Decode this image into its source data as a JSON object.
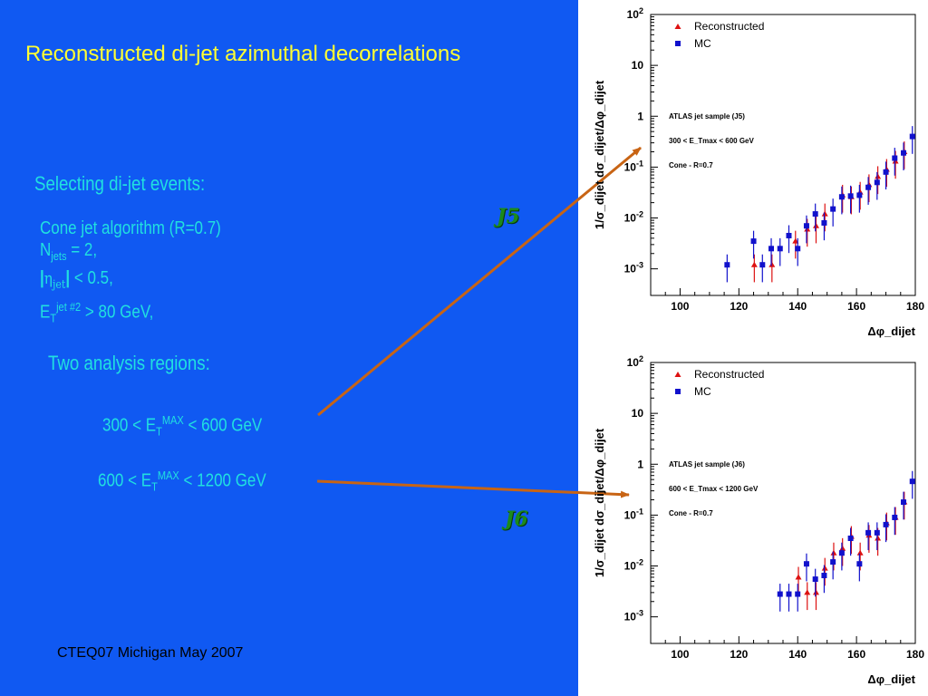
{
  "slide": {
    "title": "Reconstructed di-jet azimuthal decorrelations",
    "selecting": "Selecting di-jet events:",
    "algo": "Cone jet algorithm (R=0.7)",
    "njets_n": "N",
    "njets_sub": "jets",
    "njets_rest": " = 2,",
    "eta_open": "|",
    "eta_sym": "η",
    "eta_sub": "jet",
    "eta_close": "|",
    "eta_rest": "  < 0.5,",
    "et_e": "E",
    "et_sub": "T",
    "et_sup": "jet #2",
    "et_rest": " > 80 GeV,",
    "two_regions": "Two analysis regions:",
    "r1_pre": "300 < E",
    "r1_sub": "T",
    "r1_sup": "MAX",
    "r1_post": " < 600 GeV",
    "r2_pre": "600 < E",
    "r2_sub": "T",
    "r2_sup": "MAX",
    "r2_post": " < 1200 GeV",
    "j5": "J5",
    "j6": "J6",
    "footer": "CTEQ07 Michigan May 2007"
  },
  "colors": {
    "background": "#1059f2",
    "title": "#ffff33",
    "cyan_text": "#20e0e0",
    "arrow": "#c86414",
    "jet_label": "#1c8a1c",
    "reconstructed": "#dd1111",
    "mc": "#1111cc"
  },
  "chart_data": [
    {
      "type": "scatter",
      "xlabel": "Δφ_dijet",
      "ylabel": "1/σ_dijet dσ_dijet/Δφ_dijet",
      "xlim": [
        90,
        180
      ],
      "ylim": [
        0.0003,
        100
      ],
      "y_scale": "log",
      "x_ticks": [
        100,
        120,
        140,
        160,
        180
      ],
      "y_tick_labels": [
        "10^-3",
        "10^-2",
        "10^-1",
        "1",
        "10",
        "10^2"
      ],
      "legend": [
        "Reconstructed",
        "MC"
      ],
      "legend_position": "top-left",
      "annotations": [
        "ATLAS jet sample (J5)",
        "300 < E_Tmax < 600 GeV",
        "Cone - R=0.7"
      ],
      "series": [
        {
          "name": "Reconstructed",
          "marker": "triangle",
          "x": [
            125,
            131,
            139,
            143,
            146,
            149,
            155,
            158,
            161,
            164,
            167,
            170,
            173,
            176
          ],
          "y": [
            0.0012,
            0.0012,
            0.0035,
            0.006,
            0.007,
            0.012,
            0.028,
            0.026,
            0.032,
            0.045,
            0.065,
            0.09,
            0.13,
            0.2
          ]
        },
        {
          "name": "MC",
          "marker": "square",
          "x": [
            116,
            125,
            128,
            131,
            134,
            137,
            140,
            143,
            146,
            149,
            152,
            155,
            158,
            161,
            164,
            167,
            170,
            173,
            176,
            179
          ],
          "y": [
            0.0012,
            0.0035,
            0.0012,
            0.0025,
            0.0025,
            0.0045,
            0.0025,
            0.007,
            0.012,
            0.008,
            0.015,
            0.026,
            0.027,
            0.028,
            0.04,
            0.05,
            0.08,
            0.15,
            0.19,
            0.4
          ]
        }
      ]
    },
    {
      "type": "scatter",
      "xlabel": "Δφ_dijet",
      "ylabel": "1/σ_dijet dσ_dijet/Δφ_dijet",
      "xlim": [
        90,
        180
      ],
      "ylim": [
        0.0003,
        100
      ],
      "y_scale": "log",
      "x_ticks": [
        100,
        120,
        140,
        160,
        180
      ],
      "y_tick_labels": [
        "10^-3",
        "10^-2",
        "10^-1",
        "1",
        "10",
        "10^2"
      ],
      "legend": [
        "Reconstructed",
        "MC"
      ],
      "legend_position": "top-left",
      "annotations": [
        "ATLAS jet sample (J6)",
        "600 < E_Tmax < 1200 GeV",
        "Cone - R=0.7"
      ],
      "series": [
        {
          "name": "Reconstructed",
          "marker": "triangle",
          "x": [
            140,
            143,
            146,
            149,
            152,
            155,
            158,
            161,
            164,
            167,
            170,
            173,
            176
          ],
          "y": [
            0.006,
            0.003,
            0.003,
            0.009,
            0.018,
            0.022,
            0.038,
            0.018,
            0.04,
            0.035,
            0.07,
            0.09,
            0.18
          ]
        },
        {
          "name": "MC",
          "marker": "square",
          "x": [
            134,
            137,
            140,
            143,
            146,
            149,
            152,
            155,
            158,
            161,
            164,
            167,
            170,
            173,
            176,
            179
          ],
          "y": [
            0.0028,
            0.0028,
            0.0028,
            0.011,
            0.0055,
            0.0065,
            0.012,
            0.018,
            0.035,
            0.011,
            0.045,
            0.045,
            0.065,
            0.09,
            0.18,
            0.46
          ]
        }
      ]
    }
  ]
}
